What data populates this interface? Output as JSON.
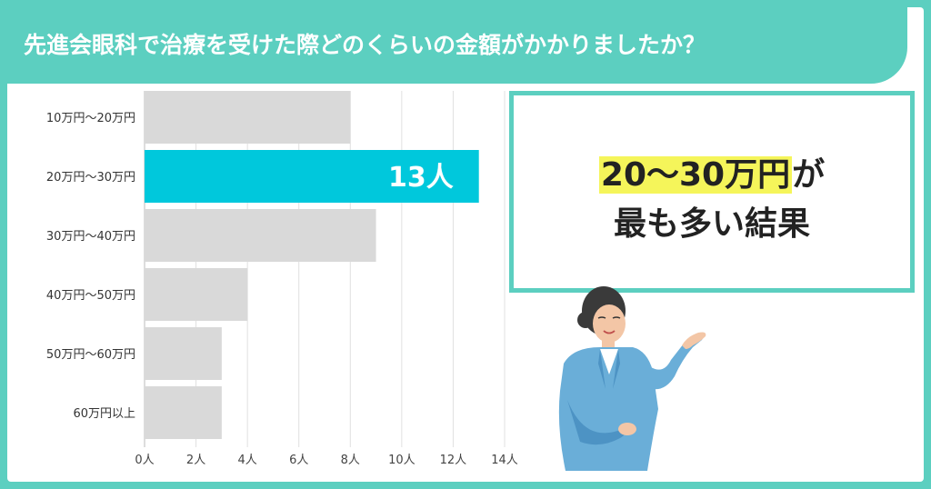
{
  "title": "先進会眼科で治療を受けた際どのくらいの金額がかかりましたか？",
  "callout": {
    "highlight": "20〜30万円",
    "suffix": "が",
    "line2": "最も多い結果"
  },
  "colors": {
    "accent": "#5ccfc0",
    "highlight_bar": "#00c8dc",
    "bar": "#d9d9d9",
    "marker": "#f5f55a"
  },
  "chart_data": {
    "type": "bar",
    "orientation": "horizontal",
    "categories": [
      "10万円〜20万円",
      "20万円〜30万円",
      "30万円〜40万円",
      "40万円〜50万円",
      "50万円〜60万円",
      "60万円以上"
    ],
    "values": [
      8,
      13,
      9,
      4,
      3,
      3
    ],
    "highlight_index": 1,
    "highlight_label": "13人",
    "xlim": [
      0,
      14
    ],
    "xticks": [
      "0人",
      "2人",
      "4人",
      "6人",
      "8人",
      "10人",
      "12人",
      "14人"
    ],
    "grid": true,
    "title": "",
    "xlabel": "",
    "ylabel": ""
  }
}
